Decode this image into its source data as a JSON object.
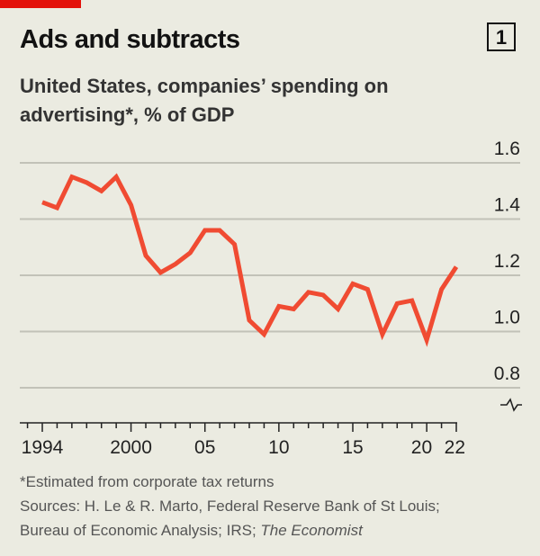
{
  "header": {
    "title": "Ads and subtracts",
    "chart_number": "1",
    "subtitle": "United States, companies’ spending on advertising*, % of GDP"
  },
  "footer": {
    "note": "*Estimated from corporate tax returns",
    "sources_line1": "Sources: H. Le & R. Marto, Federal Reserve Bank of St Louis;",
    "sources_line2": "Bureau of Economic Analysis; IRS; ",
    "sources_italic": "The Economist"
  },
  "colors": {
    "line": "#f04b32",
    "brand": "#e3120b",
    "grid": "#c2c2b8",
    "background": "#ebebe1"
  },
  "chart_data": {
    "type": "line",
    "title": "Ads and subtracts",
    "subtitle": "United States, companies’ spending on advertising*, % of GDP",
    "x": [
      1994,
      1995,
      1996,
      1997,
      1998,
      1999,
      2000,
      2001,
      2002,
      2003,
      2004,
      2005,
      2006,
      2007,
      2008,
      2009,
      2010,
      2011,
      2012,
      2013,
      2014,
      2015,
      2016,
      2017,
      2018,
      2019,
      2020,
      2021,
      2022
    ],
    "series": [
      {
        "values": [
          1.46,
          1.44,
          1.55,
          1.53,
          1.5,
          1.55,
          1.45,
          1.27,
          1.21,
          1.24,
          1.28,
          1.36,
          1.36,
          1.31,
          1.04,
          0.99,
          1.09,
          1.08,
          1.14,
          1.13,
          1.08,
          1.17,
          1.15,
          0.99,
          1.1,
          1.11,
          0.97,
          1.15,
          1.23
        ]
      }
    ],
    "xlim": [
      1994,
      2022
    ],
    "ylim": [
      0.8,
      1.6
    ],
    "y_ticks": [
      "0.8",
      "1.0",
      "1.2",
      "1.4",
      "1.6"
    ],
    "x_tick_labels": [
      {
        "year": 1994,
        "label": "1994"
      },
      {
        "year": 2000,
        "label": "2000"
      },
      {
        "year": 2005,
        "label": "05"
      },
      {
        "year": 2010,
        "label": "10"
      },
      {
        "year": 2015,
        "label": "15"
      },
      {
        "year": 2020,
        "label": "20"
      },
      {
        "year": 2022,
        "label": "22"
      }
    ],
    "y_axis_side": "right",
    "y_axis_break": true,
    "grid": true
  }
}
